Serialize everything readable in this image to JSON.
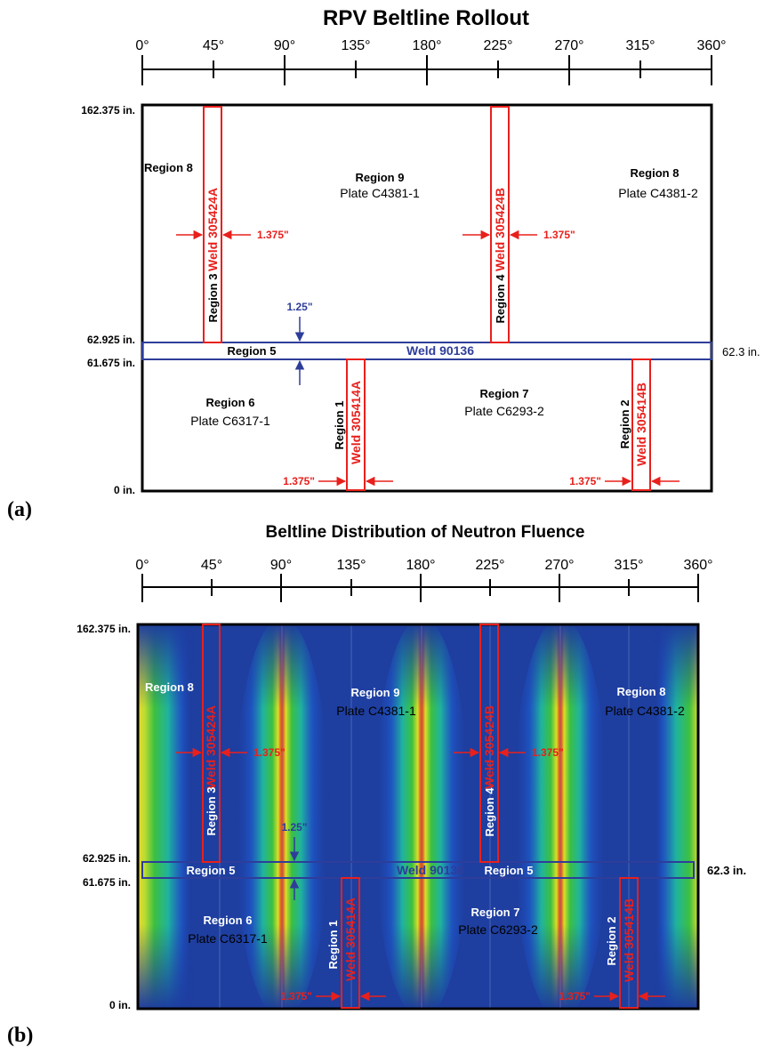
{
  "colors": {
    "weld_red": "#e8201c",
    "weld_blue": "#2e3d9a",
    "fluence_low": "#1e3ea0",
    "fluence_mid": "#3cc040",
    "fluence_high": "#e02e1e"
  },
  "panel_a": {
    "title": "RPV Beltline Rollout",
    "label": "(a)",
    "degrees": [
      "0°",
      "45°",
      "90°",
      "135°",
      "180°",
      "225°",
      "270°",
      "315°",
      "360°"
    ],
    "heights": [
      "162.375 in.",
      "62.925 in.",
      "61.675 in.",
      "0 in."
    ],
    "right_label": "62.3 in.",
    "regions": {
      "r8_left": "Region 8",
      "r9": "Region 9",
      "r9_plate": "Plate C4381-1",
      "r8_right": "Region 8",
      "r8_right_plate": "Plate C4381-2",
      "r3": "Region 3",
      "r4": "Region 4",
      "r5": "Region 5",
      "r6": "Region 6",
      "r6_plate": "Plate C6317-1",
      "r7": "Region 7",
      "r7_plate": "Plate C6293-2",
      "r1": "Region 1",
      "r2": "Region 2"
    },
    "welds": {
      "w_305424A": "Weld 305424A",
      "w_305424B": "Weld 305424B",
      "w_305414A": "Weld 305414A",
      "w_305414B": "Weld 305414B",
      "w_90136": "Weld 90136"
    },
    "dims": {
      "vert_upper_left": "1.375\"",
      "vert_upper_right": "1.375\"",
      "horiz": "1.25\"",
      "vert_lower_left": "1.375\"",
      "vert_lower_right": "1.375\""
    }
  },
  "panel_b": {
    "title": "Beltline Distribution of Neutron Fluence",
    "label": "(b)",
    "degrees": [
      "0°",
      "45°",
      "90°",
      "135°",
      "180°",
      "225°",
      "270°",
      "315°",
      "360°"
    ],
    "heights": [
      "162.375 in.",
      "62.925 in.",
      "61.675 in.",
      "0 in."
    ],
    "right_label": "62.3 in.",
    "regions": {
      "r8_left": "Region 8",
      "r9": "Region 9",
      "r9_plate": "Plate C4381-1",
      "r8_right": "Region 8",
      "r8_right_plate": "Plate C4381-2",
      "r3": "Region 3",
      "r4": "Region 4",
      "r5_left": "Region 5",
      "r5_right": "Region 5",
      "r6": "Region 6",
      "r6_plate": "Plate C6317-1",
      "r7": "Region 7",
      "r7_plate": "Plate C6293-2",
      "r1": "Region 1",
      "r2": "Region 2"
    },
    "welds": {
      "w_305424A": "Weld 305424A",
      "w_305424B": "Weld 305424B",
      "w_305414A": "Weld 305414A",
      "w_305414B": "Weld 305414B",
      "w_90136": "Weld 90136"
    },
    "dims": {
      "vert_upper_left": "1.375\"",
      "vert_upper_right": "1.375\"",
      "horiz": "1.25\"",
      "vert_lower_left": "1.375\"",
      "vert_lower_right": "1.375\""
    }
  }
}
